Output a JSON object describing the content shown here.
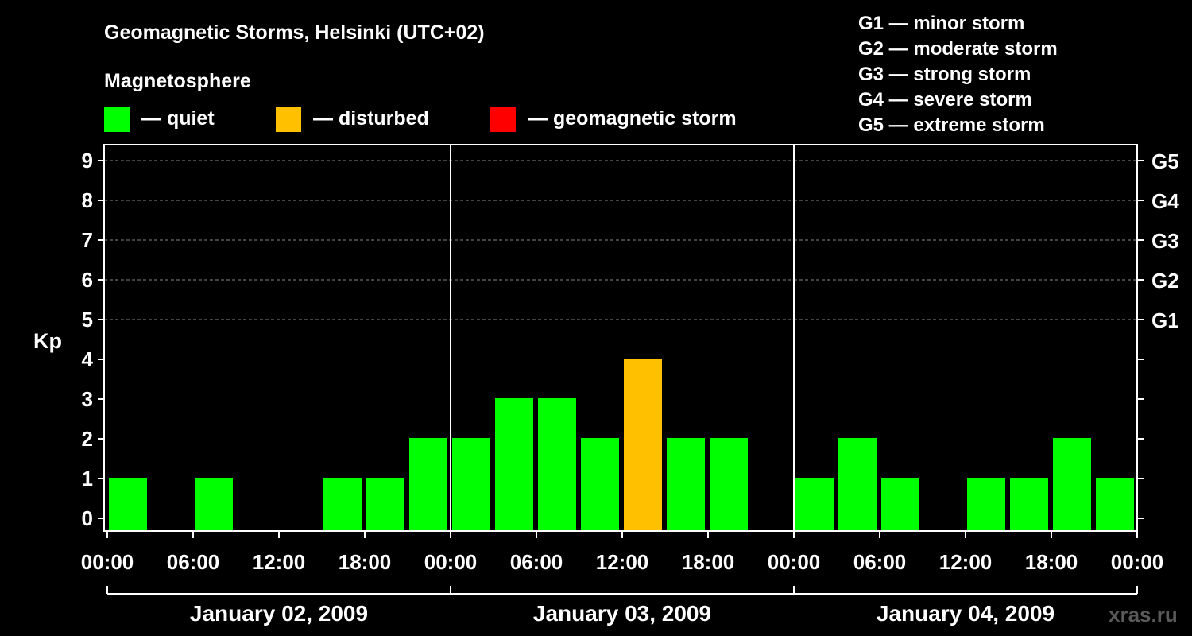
{
  "title": "Geomagnetic Storms, Helsinki (UTC+02)",
  "magnetosphere_label": "Magnetosphere",
  "legend": [
    {
      "label": "— quiet",
      "color": "#00ff00"
    },
    {
      "label": "— disturbed",
      "color": "#ffc000"
    },
    {
      "label": "— geomagnetic storm",
      "color": "#ff0000"
    }
  ],
  "storm_scale": [
    "G1 — minor storm",
    "G2 — moderate storm",
    "G3 — strong storm",
    "G4 — severe storm",
    "G5 — extreme storm"
  ],
  "watermark": "xras.ru",
  "chart_data": {
    "type": "bar",
    "title": "Geomagnetic Storms, Helsinki (UTC+02)",
    "ylabel": "Kp",
    "ylim": [
      0,
      9
    ],
    "yticks": [
      0,
      1,
      2,
      3,
      4,
      5,
      6,
      7,
      8,
      9
    ],
    "right_axis_labels": [
      {
        "value": 5,
        "label": "G1"
      },
      {
        "value": 6,
        "label": "G2"
      },
      {
        "value": 7,
        "label": "G3"
      },
      {
        "value": 8,
        "label": "G4"
      },
      {
        "value": 9,
        "label": "G5"
      }
    ],
    "xtick_labels": [
      "00:00",
      "06:00",
      "12:00",
      "18:00",
      "00:00",
      "06:00",
      "12:00",
      "18:00",
      "00:00",
      "06:00",
      "12:00",
      "18:00",
      "00:00"
    ],
    "days": [
      "January 02, 2009",
      "January 03, 2009",
      "January 04, 2009"
    ],
    "interval_hours": 3,
    "grid": true,
    "series": [
      {
        "values": [
          1,
          null,
          1,
          null,
          null,
          1,
          1,
          2,
          2,
          3,
          3,
          2,
          4,
          2,
          2,
          null,
          1,
          2,
          1,
          null,
          1,
          1,
          2,
          1
        ],
        "colors": [
          "#00ff00",
          "#00ff00",
          "#00ff00",
          "#00ff00",
          "#00ff00",
          "#00ff00",
          "#00ff00",
          "#00ff00",
          "#00ff00",
          "#00ff00",
          "#00ff00",
          "#00ff00",
          "#ffc000",
          "#00ff00",
          "#00ff00",
          "#00ff00",
          "#00ff00",
          "#00ff00",
          "#00ff00",
          "#00ff00",
          "#00ff00",
          "#00ff00",
          "#00ff00",
          "#00ff00"
        ]
      }
    ]
  }
}
